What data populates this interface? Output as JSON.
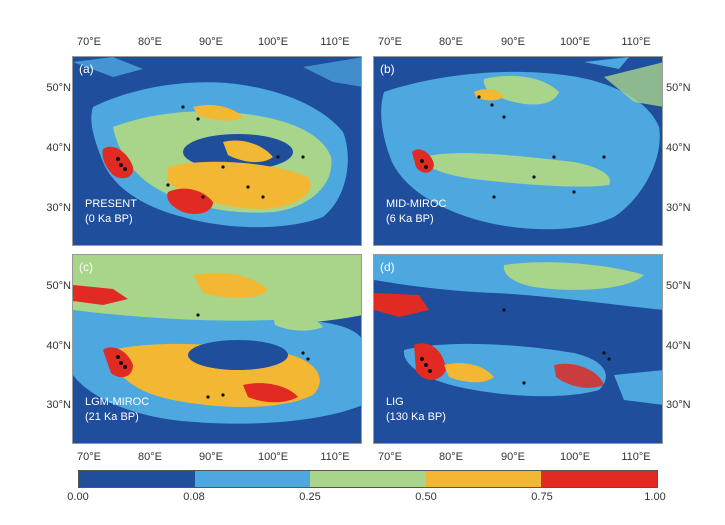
{
  "top_ticks": [
    "70°E",
    "80°E",
    "90°E",
    "100°E",
    "110°E"
  ],
  "bottom_ticks": [
    "70°E",
    "80°E",
    "90°E",
    "100°E",
    "110°E"
  ],
  "lat_ticks": [
    "50°N",
    "40°N",
    "30°N"
  ],
  "panels": [
    {
      "label": "(a)",
      "name": "PRESENT",
      "sub": "(0 Ka BP)"
    },
    {
      "label": "(b)",
      "name": "MID-MIROC",
      "sub": "(6 Ka BP)"
    },
    {
      "label": "(c)",
      "name": "LGM-MIROC",
      "sub": "(21 Ka BP)"
    },
    {
      "label": "(d)",
      "name": "LIG",
      "sub": "(130 Ka BP)"
    }
  ],
  "legend": {
    "colors": [
      "#1f4e9c",
      "#4da8e0",
      "#a8d58a",
      "#f2b733",
      "#e02a22"
    ],
    "ticks": [
      "0.00",
      "0.08",
      "0.25",
      "0.50",
      "0.75",
      "1.00"
    ]
  }
}
